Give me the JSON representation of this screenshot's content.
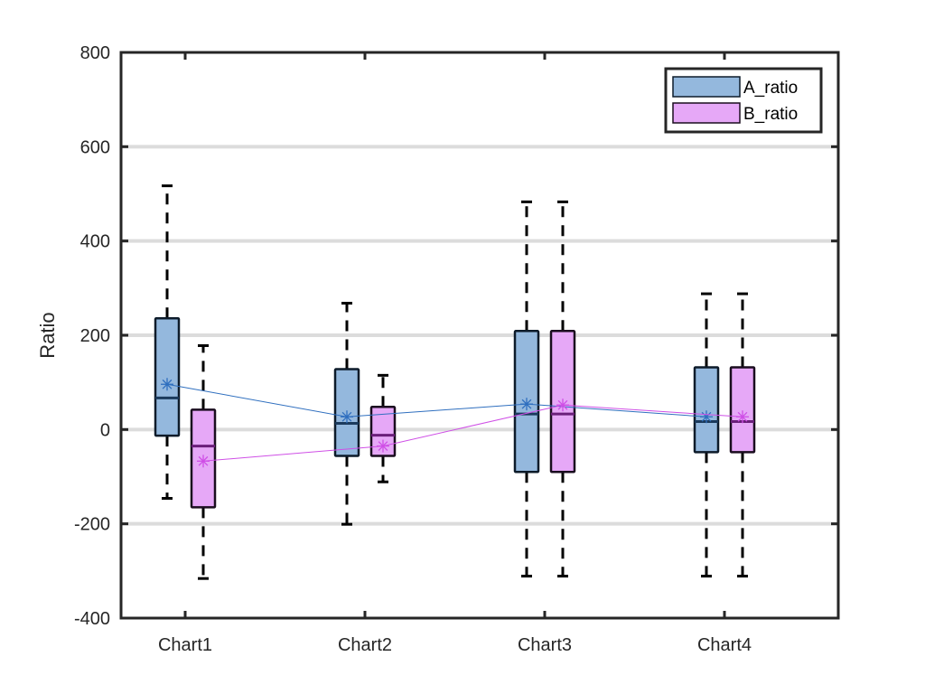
{
  "chart_data": {
    "type": "boxplot",
    "title": "",
    "xlabel": "",
    "ylabel": "Ratio",
    "ylim": [
      -400,
      800
    ],
    "yticks": [
      -400,
      -200,
      0,
      200,
      400,
      600,
      800
    ],
    "ytick_labels": [
      "-400",
      "-200",
      "0",
      "200",
      "400",
      "600",
      "800"
    ],
    "grid": "horizontal",
    "legend_position": "top-right",
    "categories": [
      "Chart1",
      "Chart2",
      "Chart3",
      "Chart4"
    ],
    "series": [
      {
        "name": "A_ratio",
        "color": "#94b8dd",
        "edge_color": "#0d1b2a",
        "mean_color": "#2f6fbf",
        "boxes": [
          {
            "whisker_low": -146,
            "q1": -13,
            "median": 67,
            "q3": 236,
            "whisker_high": 517,
            "mean": 96
          },
          {
            "whisker_low": -201,
            "q1": -56,
            "median": 13,
            "q3": 128,
            "whisker_high": 268,
            "mean": 27
          },
          {
            "whisker_low": -311,
            "q1": -90,
            "median": 33,
            "q3": 209,
            "whisker_high": 483,
            "mean": 54
          },
          {
            "whisker_low": -311,
            "q1": -48,
            "median": 17,
            "q3": 132,
            "whisker_high": 288,
            "mean": 27
          }
        ]
      },
      {
        "name": "B_ratio",
        "color": "#e6a8f7",
        "edge_color": "#1a0d1f",
        "mean_color": "#cf4fe6",
        "boxes": [
          {
            "whisker_low": -316,
            "q1": -165,
            "median": -35,
            "q3": 42,
            "whisker_high": 178,
            "mean": -67
          },
          {
            "whisker_low": -111,
            "q1": -56,
            "median": -12,
            "q3": 48,
            "whisker_high": 115,
            "mean": -35
          },
          {
            "whisker_low": -311,
            "q1": -90,
            "median": 33,
            "q3": 209,
            "whisker_high": 483,
            "mean": 52
          },
          {
            "whisker_low": -311,
            "q1": -48,
            "median": 17,
            "q3": 132,
            "whisker_high": 288,
            "mean": 27
          }
        ]
      }
    ]
  }
}
